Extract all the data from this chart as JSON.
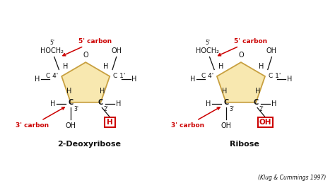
{
  "bg_color": "#ffffff",
  "pentagon_fill": "#f8e8b0",
  "pentagon_edge": "#c8a040",
  "red_color": "#cc0000",
  "black_color": "#111111",
  "label_2deoxy": "2-Deoxyribose",
  "label_ribose": "Ribose",
  "citation": "(Klug & Cummings 1997)",
  "label_5c": "5' carbon",
  "label_3c": "3' carbon",
  "fig_width": 4.74,
  "fig_height": 2.66,
  "dpi": 100
}
